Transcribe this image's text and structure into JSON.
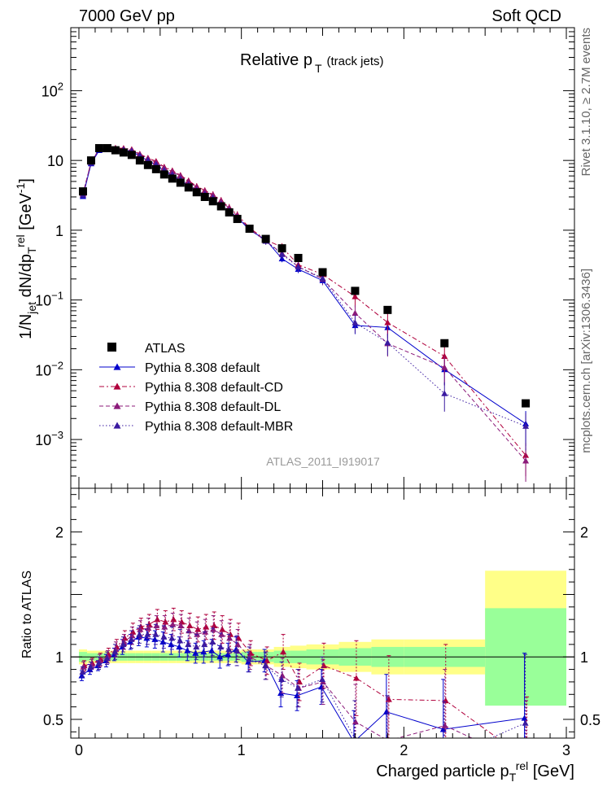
{
  "header": {
    "left": "7000 GeV pp",
    "right": "Soft QCD"
  },
  "side_labels": {
    "rivet": "Rivet 3.1.10, ≥ 2.7M events",
    "mcplots": "mcplots.cern.ch [arXiv:1306.3436]"
  },
  "chart_data": {
    "type": "scatter",
    "title_main": "Relative p",
    "title_sub": "T",
    "title_extra": "(track jets)",
    "watermark": "ATLAS_2011_I919017",
    "ylabel_top": "1/N_jet dN/dp_T^rel [GeV^-1]",
    "ylabel_ratio": "Ratio to ATLAS",
    "xlabel": "Charged particle p_T^rel [GeV]",
    "xlim": [
      -0.05,
      3.05
    ],
    "ylim_top": [
      0.0002,
      800
    ],
    "yscale_top": "log",
    "ylim_ratio": [
      0.35,
      2.35
    ],
    "x_ticks": [
      "0",
      "1",
      "2",
      "3"
    ],
    "y_ticks_top": [
      "10^-3",
      "10^-2",
      "10^-1",
      "1",
      "10",
      "10^2"
    ],
    "y_ticks_ratio": [
      "0.5",
      "1",
      "2"
    ],
    "legend_position": "lower-left",
    "legend": [
      "ATLAS",
      "Pythia 8.308 default",
      "Pythia 8.308 default-CD",
      "Pythia 8.308 default-DL",
      "Pythia 8.308 default-MBR"
    ],
    "series_colors": {
      "ATLAS": "#000000",
      "default": "#0000cc",
      "cd": "#b0003c",
      "dl": "#8c1a7a",
      "mbr": "#3a1aa0",
      "band_inner": "#99ff99",
      "band_outer": "#ffff88"
    },
    "x": [
      0.025,
      0.075,
      0.125,
      0.175,
      0.225,
      0.275,
      0.325,
      0.375,
      0.425,
      0.475,
      0.525,
      0.575,
      0.625,
      0.675,
      0.725,
      0.775,
      0.825,
      0.875,
      0.925,
      0.975,
      1.05,
      1.15,
      1.25,
      1.35,
      1.5,
      1.7,
      1.9,
      2.25,
      2.75
    ],
    "atlas": [
      3.6,
      10.0,
      15.0,
      15.0,
      14.0,
      13.0,
      12.0,
      10.0,
      8.6,
      7.5,
      6.3,
      5.5,
      4.8,
      4.1,
      3.5,
      3.0,
      2.6,
      2.2,
      1.8,
      1.45,
      1.05,
      0.75,
      0.55,
      0.4,
      0.25,
      0.135,
      0.072,
      0.024,
      0.0033
    ],
    "band_edges": [
      0.0,
      0.05,
      0.1,
      0.15,
      0.2,
      0.25,
      0.3,
      0.35,
      0.4,
      0.45,
      0.5,
      0.55,
      0.6,
      0.65,
      0.7,
      0.75,
      0.8,
      0.85,
      0.9,
      0.95,
      1.0,
      1.1,
      1.2,
      1.3,
      1.4,
      1.6,
      1.8,
      2.0,
      2.5,
      3.0
    ],
    "band_inner": [
      0.04,
      0.03,
      0.03,
      0.03,
      0.03,
      0.03,
      0.03,
      0.03,
      0.03,
      0.03,
      0.03,
      0.03,
      0.03,
      0.03,
      0.03,
      0.03,
      0.03,
      0.03,
      0.03,
      0.03,
      0.04,
      0.04,
      0.05,
      0.05,
      0.06,
      0.07,
      0.08,
      0.08,
      0.39
    ],
    "band_outer": [
      0.06,
      0.05,
      0.05,
      0.05,
      0.05,
      0.05,
      0.05,
      0.05,
      0.05,
      0.05,
      0.05,
      0.05,
      0.05,
      0.05,
      0.05,
      0.05,
      0.05,
      0.05,
      0.05,
      0.05,
      0.06,
      0.06,
      0.08,
      0.09,
      0.1,
      0.12,
      0.14,
      0.14,
      0.69
    ],
    "band_outer_low": [
      0.06,
      0.05,
      0.05,
      0.05,
      0.05,
      0.05,
      0.05,
      0.05,
      0.05,
      0.05,
      0.05,
      0.05,
      0.05,
      0.05,
      0.05,
      0.05,
      0.05,
      0.05,
      0.05,
      0.05,
      0.06,
      0.06,
      0.08,
      0.09,
      0.1,
      0.12,
      0.14,
      0.14,
      0.26
    ],
    "series": [
      {
        "name": "Pythia 8.308 default",
        "key": "default",
        "ratio": [
          0.85,
          0.9,
          0.93,
          0.97,
          1.02,
          1.08,
          1.12,
          1.16,
          1.15,
          1.14,
          1.12,
          1.1,
          1.08,
          1.05,
          1.03,
          1.04,
          1.05,
          1.0,
          1.02,
          1.06,
          0.96,
          0.97,
          0.71,
          0.69,
          0.76,
          0.32,
          0.56,
          0.42,
          0.51
        ],
        "err": [
          0.04,
          0.04,
          0.04,
          0.05,
          0.05,
          0.06,
          0.06,
          0.07,
          0.07,
          0.07,
          0.08,
          0.08,
          0.08,
          0.08,
          0.08,
          0.09,
          0.09,
          0.09,
          0.09,
          0.1,
          0.08,
          0.09,
          0.11,
          0.12,
          0.14,
          0.25,
          0.3,
          0.4,
          0.52
        ]
      },
      {
        "name": "Pythia 8.308 default-CD",
        "key": "cd",
        "ratio": [
          0.93,
          0.95,
          0.98,
          1.02,
          1.08,
          1.15,
          1.2,
          1.24,
          1.26,
          1.3,
          1.28,
          1.3,
          1.28,
          1.25,
          1.22,
          1.24,
          1.25,
          1.22,
          1.18,
          1.15,
          1.03,
          0.97,
          1.04,
          0.8,
          0.93,
          0.83,
          0.66,
          0.65,
          0.18
        ],
        "err": [
          0.04,
          0.04,
          0.05,
          0.05,
          0.06,
          0.06,
          0.07,
          0.07,
          0.08,
          0.08,
          0.09,
          0.09,
          0.09,
          0.1,
          0.1,
          0.1,
          0.11,
          0.11,
          0.12,
          0.12,
          0.1,
          0.11,
          0.14,
          0.15,
          0.18,
          0.3,
          0.35,
          0.45,
          0.5
        ]
      },
      {
        "name": "Pythia 8.308 default-DL",
        "key": "dl",
        "ratio": [
          0.92,
          0.94,
          0.97,
          1.0,
          1.06,
          1.12,
          1.17,
          1.22,
          1.23,
          1.25,
          1.24,
          1.26,
          1.25,
          1.21,
          1.18,
          1.2,
          1.22,
          1.18,
          1.15,
          1.1,
          1.0,
          0.93,
          0.85,
          0.75,
          0.8,
          0.48,
          0.33,
          0.45,
          0.15
        ],
        "err": [
          0.04,
          0.04,
          0.05,
          0.05,
          0.06,
          0.06,
          0.07,
          0.07,
          0.08,
          0.08,
          0.09,
          0.09,
          0.09,
          0.1,
          0.1,
          0.1,
          0.11,
          0.11,
          0.12,
          0.12,
          0.1,
          0.11,
          0.14,
          0.15,
          0.18,
          0.3,
          0.35,
          0.45,
          0.5
        ]
      },
      {
        "name": "Pythia 8.308 default-MBR",
        "key": "mbr",
        "ratio": [
          0.88,
          0.92,
          0.95,
          0.99,
          1.04,
          1.1,
          1.14,
          1.18,
          1.18,
          1.18,
          1.16,
          1.15,
          1.13,
          1.1,
          1.08,
          1.1,
          1.12,
          1.08,
          1.06,
          1.05,
          0.98,
          0.93,
          0.82,
          0.75,
          0.82,
          0.35,
          0.34,
          0.19,
          0.47
        ],
        "err": [
          0.04,
          0.04,
          0.05,
          0.05,
          0.06,
          0.06,
          0.07,
          0.07,
          0.08,
          0.08,
          0.09,
          0.09,
          0.09,
          0.1,
          0.1,
          0.1,
          0.11,
          0.11,
          0.12,
          0.12,
          0.1,
          0.11,
          0.14,
          0.15,
          0.18,
          0.3,
          0.35,
          0.45,
          0.55
        ]
      }
    ]
  }
}
